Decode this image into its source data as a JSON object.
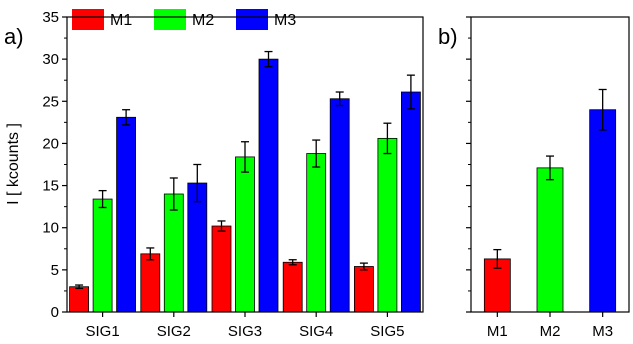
{
  "chart_data": [
    {
      "panel_label": "a)",
      "type": "bar",
      "categories": [
        "SIG1",
        "SIG2",
        "SIG3",
        "SIG4",
        "SIG5"
      ],
      "series": [
        {
          "name": "M1",
          "color": "#ff0000",
          "values": [
            3.0,
            6.9,
            10.2,
            5.9,
            5.4
          ],
          "errors": [
            0.2,
            0.7,
            0.6,
            0.3,
            0.4
          ]
        },
        {
          "name": "M2",
          "color": "#00ff00",
          "values": [
            13.4,
            14.0,
            18.4,
            18.8,
            20.6
          ],
          "errors": [
            1.0,
            1.9,
            1.8,
            1.6,
            1.8
          ]
        },
        {
          "name": "M3",
          "color": "#0000ff",
          "values": [
            23.1,
            15.3,
            30.0,
            25.3,
            26.1
          ],
          "errors": [
            0.9,
            2.2,
            0.9,
            0.8,
            2.0
          ]
        }
      ],
      "ylabel": "I [ kcounts ]",
      "ylim": [
        0,
        35
      ],
      "yticks": [
        0,
        5,
        10,
        15,
        20,
        25,
        30,
        35
      ],
      "legend": {
        "placement": "top-left",
        "entries": [
          "M1",
          "M2",
          "M3"
        ]
      },
      "grid": false
    },
    {
      "panel_label": "b)",
      "type": "bar",
      "categories": [
        "M1",
        "M2",
        "M3"
      ],
      "values": [
        6.3,
        17.1,
        24.0
      ],
      "errors": [
        1.1,
        1.4,
        2.4
      ],
      "colors": [
        "#ff0000",
        "#00ff00",
        "#0000ff"
      ],
      "ylim": [
        0,
        35
      ],
      "grid": false
    }
  ]
}
